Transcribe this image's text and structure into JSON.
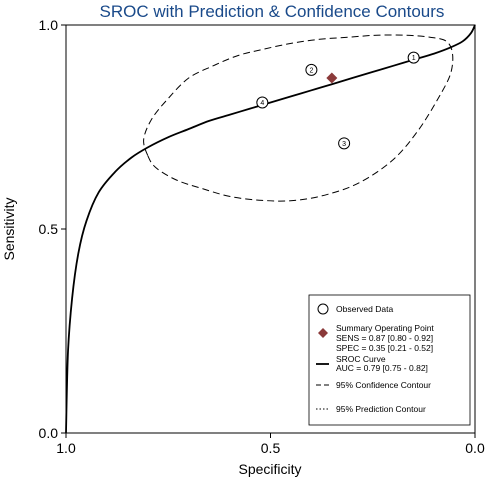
{
  "chart_data": {
    "type": "line",
    "title": "SROC with Prediction & Confidence Contours",
    "xlabel": "Specificity",
    "ylabel": "Sensitivity",
    "x_reversed": true,
    "xlim": [
      1.0,
      0.0
    ],
    "ylim": [
      0.0,
      1.0
    ],
    "xticks": [
      "1.0",
      "0.5",
      "0.0"
    ],
    "yticks": [
      "0.0",
      "0.5",
      "1.0"
    ],
    "grid": false,
    "legend_position": "bottom-right",
    "studies": [
      {
        "label": "1",
        "specificity": 0.15,
        "sensitivity": 0.92
      },
      {
        "label": "2",
        "specificity": 0.4,
        "sensitivity": 0.89
      },
      {
        "label": "3",
        "specificity": 0.32,
        "sensitivity": 0.71
      },
      {
        "label": "4",
        "specificity": 0.52,
        "sensitivity": 0.81
      }
    ],
    "summary_point": {
      "specificity": 0.35,
      "sensitivity": 0.87
    },
    "sroc_curve": {
      "specificity": [
        1.0,
        0.995,
        0.985,
        0.97,
        0.95,
        0.92,
        0.88,
        0.84,
        0.8,
        0.75,
        0.7,
        0.65,
        0.6,
        0.55,
        0.5,
        0.45,
        0.4,
        0.35,
        0.3,
        0.25,
        0.2,
        0.15,
        0.1,
        0.06,
        0.03,
        0.01,
        0.0
      ],
      "sensitivity": [
        0.0,
        0.2,
        0.33,
        0.44,
        0.52,
        0.59,
        0.64,
        0.675,
        0.7,
        0.725,
        0.745,
        0.765,
        0.78,
        0.795,
        0.81,
        0.825,
        0.84,
        0.855,
        0.87,
        0.885,
        0.9,
        0.915,
        0.93,
        0.945,
        0.96,
        0.98,
        1.0
      ]
    },
    "confidence_contour": {
      "specificity": [
        0.8,
        0.81,
        0.79,
        0.75,
        0.7,
        0.64,
        0.58,
        0.52,
        0.45,
        0.38,
        0.31,
        0.24,
        0.17,
        0.11,
        0.07,
        0.055,
        0.06,
        0.09,
        0.14,
        0.2,
        0.28,
        0.36,
        0.44,
        0.52,
        0.6,
        0.67,
        0.73,
        0.78,
        0.8
      ],
      "sensitivity": [
        0.68,
        0.72,
        0.77,
        0.82,
        0.87,
        0.9,
        0.925,
        0.94,
        0.955,
        0.965,
        0.97,
        0.975,
        0.975,
        0.97,
        0.96,
        0.93,
        0.88,
        0.82,
        0.74,
        0.67,
        0.615,
        0.585,
        0.57,
        0.57,
        0.58,
        0.6,
        0.62,
        0.65,
        0.68
      ]
    },
    "legend": [
      {
        "key": "observed",
        "label": "Observed Data"
      },
      {
        "key": "summary",
        "label": "Summary Operating Point",
        "lines": [
          "SENS = 0.87 [0.80 - 0.92]",
          "SPEC = 0.35 [0.21 - 0.52]"
        ]
      },
      {
        "key": "sroc",
        "label": "SROC Curve",
        "lines": [
          "AUC = 0.79 [0.75 - 0.82]"
        ]
      },
      {
        "key": "confidence",
        "label": "95% Confidence Contour"
      },
      {
        "key": "prediction",
        "label": "95% Prediction Contour"
      }
    ],
    "colors": {
      "summary": "#8b3a3a",
      "title": "#1a4a8a",
      "line": "#000000"
    }
  }
}
